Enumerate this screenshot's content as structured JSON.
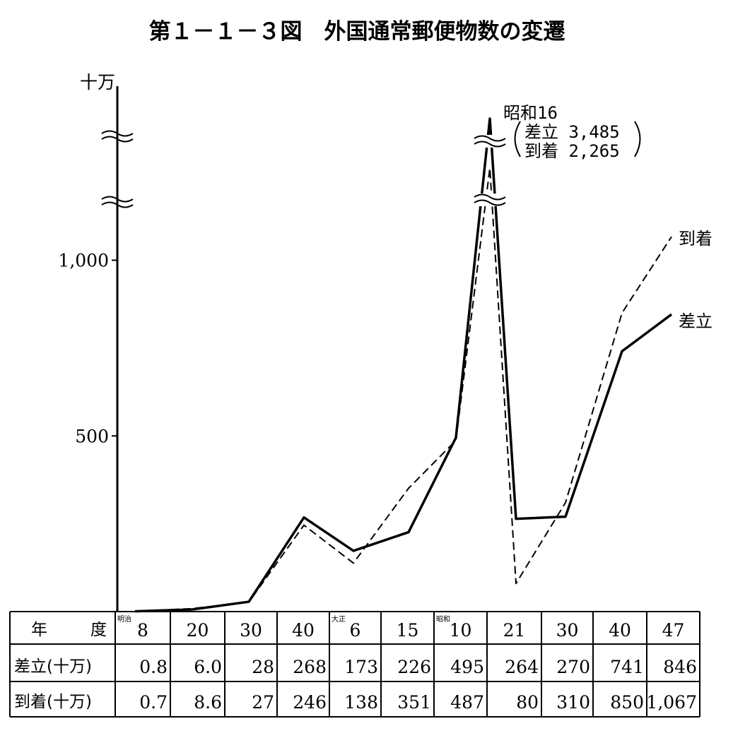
{
  "title": "第１－１－３図　外国通常郵便物数の変遷",
  "y_unit": "十万",
  "annotation": {
    "line1": "昭和16",
    "line2": "差立 3,485",
    "line3": "到着 2,265"
  },
  "table": {
    "year_label_1": "年",
    "year_label_2": "度",
    "row1_label": "差立(十万)",
    "row2_label": "到着(十万)",
    "eras": [
      {
        "col": 0,
        "label": "明治"
      },
      {
        "col": 4,
        "label": "大正"
      },
      {
        "col": 6,
        "label": "昭和"
      }
    ]
  },
  "chart_data": {
    "type": "line",
    "title": "第１－１－３図　外国通常郵便物数の変遷",
    "ylabel": "十万",
    "ylim": [
      0,
      1000
    ],
    "yticks": [
      500,
      1000
    ],
    "ytick_labels": [
      "500",
      "1,000"
    ],
    "categories": [
      "8",
      "20",
      "30",
      "40",
      "6",
      "15",
      "10",
      "21",
      "30",
      "40",
      "47"
    ],
    "category_eras": [
      "明治",
      "明治",
      "明治",
      "明治",
      "大正",
      "大正",
      "昭和",
      "昭和",
      "昭和",
      "昭和",
      "昭和"
    ],
    "peak": {
      "era": "昭和",
      "year": "16",
      "差立": 3485,
      "到着": 2265
    },
    "series": [
      {
        "name": "差立",
        "style": "solid",
        "values": [
          0.8,
          6.0,
          28,
          268,
          173,
          226,
          495,
          264,
          270,
          741,
          846
        ],
        "value_labels": [
          "0.8",
          "6.0",
          "28",
          "268",
          "173",
          "226",
          "495",
          "264",
          "270",
          "741",
          "846"
        ]
      },
      {
        "name": "到着",
        "style": "dashed",
        "values": [
          0.7,
          8.6,
          27,
          246,
          138,
          351,
          487,
          80,
          310,
          850,
          1067
        ],
        "value_labels": [
          "0.7",
          "8.6",
          "27",
          "246",
          "138",
          "351",
          "487",
          "80",
          "310",
          "850",
          "1,067"
        ]
      }
    ]
  }
}
